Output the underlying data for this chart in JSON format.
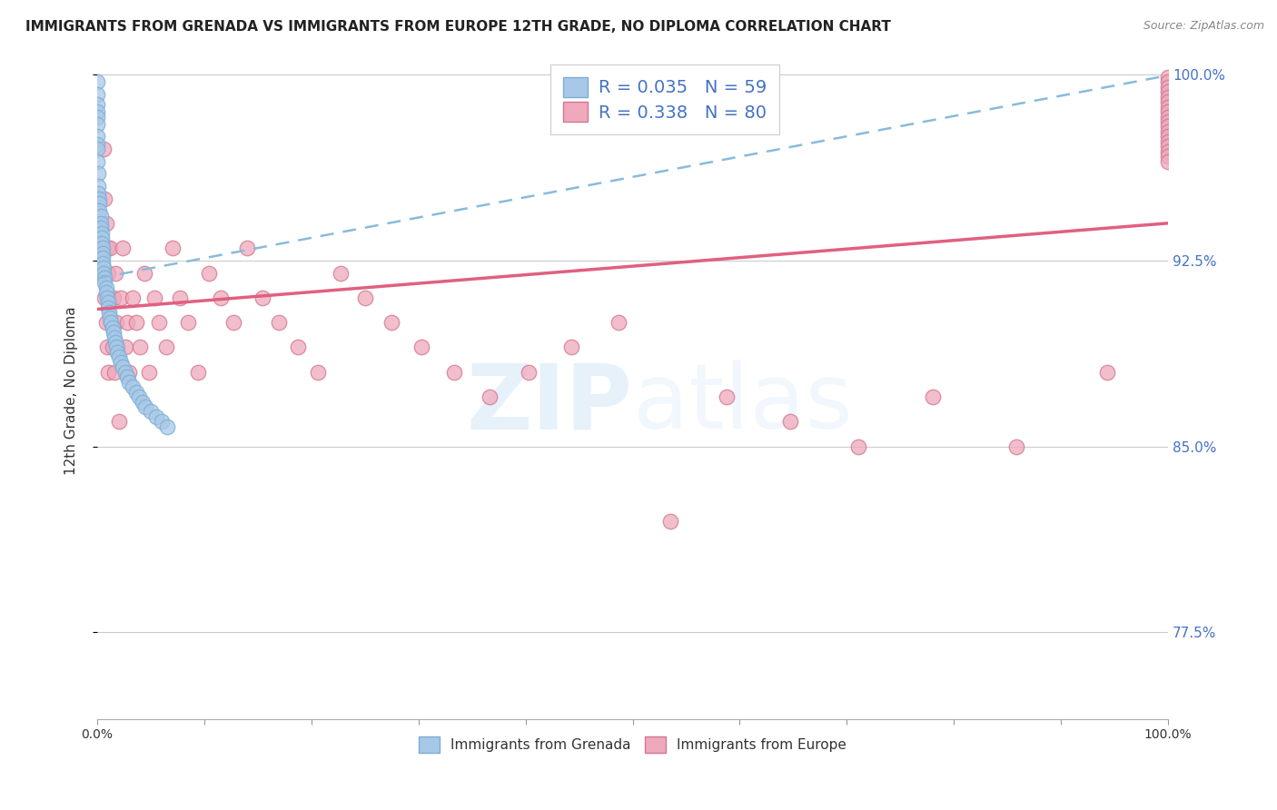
{
  "title": "IMMIGRANTS FROM GRENADA VS IMMIGRANTS FROM EUROPE 12TH GRADE, NO DIPLOMA CORRELATION CHART",
  "source": "Source: ZipAtlas.com",
  "ylabel": "12th Grade, No Diploma",
  "background_color": "#ffffff",
  "grenada_color": "#A8C8E8",
  "grenada_edge": "#7AAED4",
  "europe_color": "#F0A8BC",
  "europe_edge": "#D07890",
  "trend_grenada_color": "#88BBDD",
  "trend_europe_color": "#E06080",
  "ytick_vals": [
    0.775,
    0.85,
    0.925,
    1.0
  ],
  "ytick_labels": [
    "77.5%",
    "85.0%",
    "92.5%",
    "100.0%"
  ],
  "ymin": 0.74,
  "ymax": 1.005,
  "grenada_scatter_x": [
    0.0,
    0.0,
    0.0,
    0.0,
    0.0,
    0.0,
    0.0,
    0.0,
    0.0,
    0.0,
    0.001,
    0.001,
    0.001,
    0.002,
    0.002,
    0.002,
    0.003,
    0.003,
    0.003,
    0.004,
    0.004,
    0.004,
    0.005,
    0.005,
    0.005,
    0.005,
    0.006,
    0.006,
    0.007,
    0.007,
    0.008,
    0.008,
    0.009,
    0.01,
    0.01,
    0.011,
    0.012,
    0.013,
    0.014,
    0.015,
    0.016,
    0.017,
    0.018,
    0.019,
    0.02,
    0.022,
    0.024,
    0.026,
    0.028,
    0.03,
    0.033,
    0.036,
    0.039,
    0.042,
    0.045,
    0.05,
    0.055,
    0.06,
    0.065
  ],
  "grenada_scatter_y": [
    0.997,
    0.992,
    0.988,
    0.985,
    0.983,
    0.98,
    0.975,
    0.972,
    0.97,
    0.965,
    0.96,
    0.955,
    0.952,
    0.95,
    0.948,
    0.945,
    0.943,
    0.94,
    0.938,
    0.936,
    0.934,
    0.932,
    0.93,
    0.928,
    0.926,
    0.924,
    0.922,
    0.92,
    0.918,
    0.916,
    0.914,
    0.912,
    0.91,
    0.908,
    0.906,
    0.904,
    0.902,
    0.9,
    0.898,
    0.896,
    0.894,
    0.892,
    0.89,
    0.888,
    0.886,
    0.884,
    0.882,
    0.88,
    0.878,
    0.876,
    0.874,
    0.872,
    0.87,
    0.868,
    0.866,
    0.864,
    0.862,
    0.86,
    0.858
  ],
  "europe_scatter_x": [
    0.004,
    0.005,
    0.006,
    0.007,
    0.007,
    0.008,
    0.008,
    0.009,
    0.009,
    0.01,
    0.01,
    0.011,
    0.012,
    0.013,
    0.014,
    0.015,
    0.016,
    0.017,
    0.018,
    0.019,
    0.02,
    0.022,
    0.024,
    0.026,
    0.028,
    0.03,
    0.033,
    0.036,
    0.04,
    0.044,
    0.048,
    0.053,
    0.058,
    0.064,
    0.07,
    0.077,
    0.085,
    0.094,
    0.104,
    0.115,
    0.127,
    0.14,
    0.154,
    0.17,
    0.187,
    0.206,
    0.227,
    0.25,
    0.275,
    0.303,
    0.333,
    0.366,
    0.403,
    0.443,
    0.487,
    0.535,
    0.588,
    0.647,
    0.711,
    0.78,
    0.858,
    0.943,
    1.0,
    1.0,
    1.0,
    1.0,
    1.0,
    1.0,
    1.0,
    1.0,
    1.0,
    1.0,
    1.0,
    1.0,
    1.0,
    1.0,
    1.0,
    1.0,
    1.0,
    1.0
  ],
  "europe_scatter_y": [
    0.93,
    0.92,
    0.97,
    0.91,
    0.95,
    0.9,
    0.94,
    0.89,
    0.93,
    0.88,
    0.92,
    0.91,
    0.93,
    0.9,
    0.89,
    0.91,
    0.88,
    0.92,
    0.9,
    0.89,
    0.86,
    0.91,
    0.93,
    0.89,
    0.9,
    0.88,
    0.91,
    0.9,
    0.89,
    0.92,
    0.88,
    0.91,
    0.9,
    0.89,
    0.93,
    0.91,
    0.9,
    0.88,
    0.92,
    0.91,
    0.9,
    0.93,
    0.91,
    0.9,
    0.89,
    0.88,
    0.92,
    0.91,
    0.9,
    0.89,
    0.88,
    0.87,
    0.88,
    0.89,
    0.9,
    0.82,
    0.87,
    0.86,
    0.85,
    0.87,
    0.85,
    0.88,
    0.999,
    0.997,
    0.995,
    0.993,
    0.991,
    0.989,
    0.987,
    0.985,
    0.983,
    0.981,
    0.979,
    0.977,
    0.975,
    0.973,
    0.971,
    0.969,
    0.967,
    0.965
  ]
}
